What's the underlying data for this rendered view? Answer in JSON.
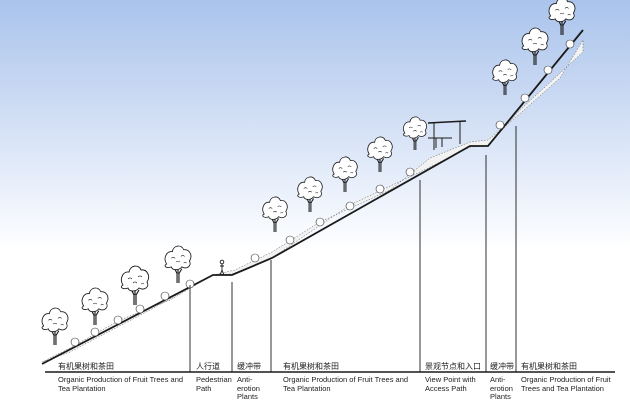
{
  "zones": [
    {
      "zh": "有机果树和茶田",
      "en": "Organic Production of Fruit Trees and Tea Plantation"
    },
    {
      "zh": "人行道",
      "en": "Pedestrian Path"
    },
    {
      "zh": "缓冲带",
      "en": "Anti- erotion Plants"
    },
    {
      "zh": "有机果树和茶田",
      "en": "Organic Production of Fruit Trees and Tea Plantation"
    },
    {
      "zh": "景观节点和入口",
      "en": "View Point with Access Path"
    },
    {
      "zh": "缓冲带",
      "en": "Anti- erotion Plants"
    },
    {
      "zh": "有机果树和茶田",
      "en": "Organic Production of Fruit Trees and Tea Plantation"
    }
  ],
  "colors": {
    "line": "#1a1a1a",
    "sky": "#aac4ec"
  },
  "icons": [
    "tree-icon",
    "person-icon",
    "pavilion-icon"
  ]
}
